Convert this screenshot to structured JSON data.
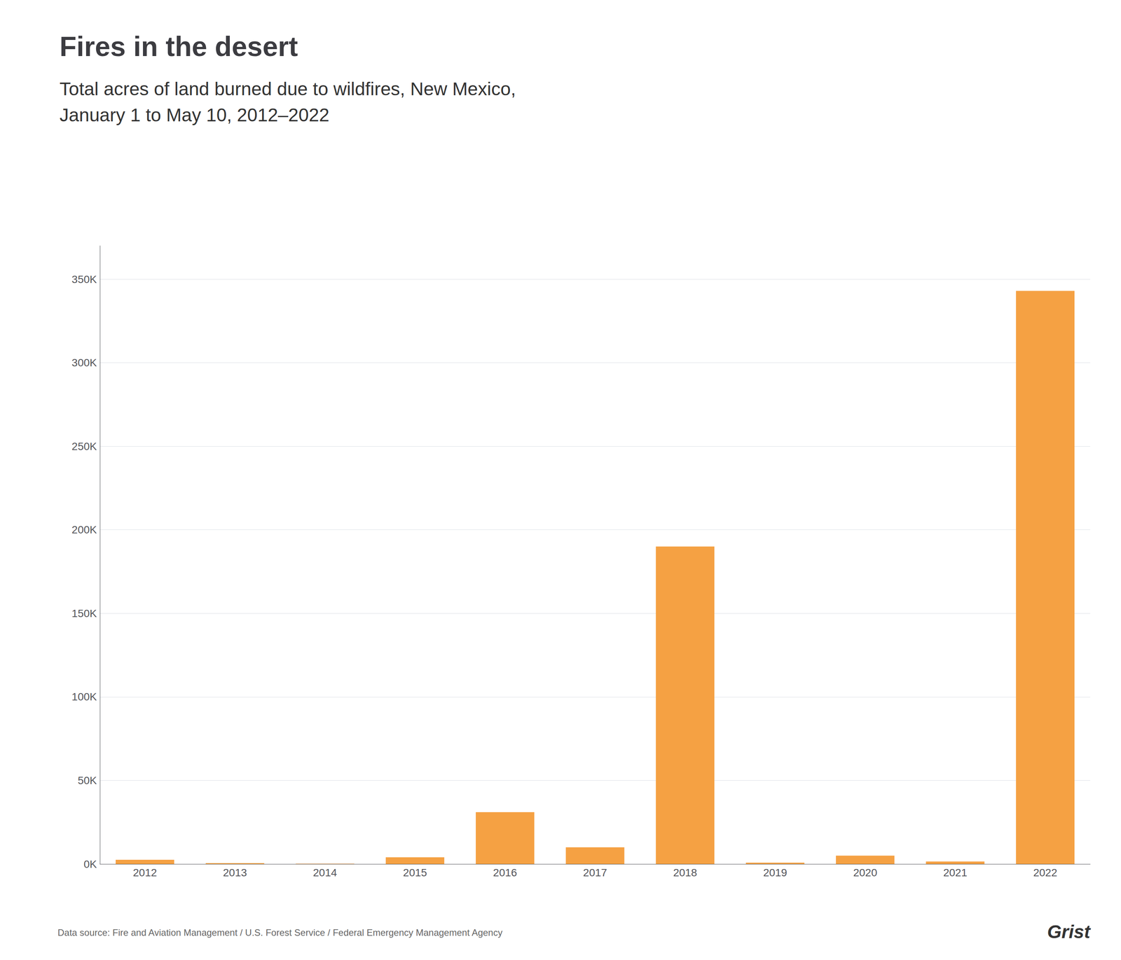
{
  "chart_data": {
    "type": "bar",
    "title": "Fires in the desert",
    "subtitle": "Total acres of land burned due to wildfires, New Mexico,\nJanuary 1 to May 10, 2012–2022",
    "annotations": [
      "Data source: Fire and Aviation Management / U.S. Forest Service / Federal Emergency Management Agency",
      "Grist"
    ],
    "categories": [
      "2012",
      "2013",
      "2014",
      "2015",
      "2016",
      "2017",
      "2018",
      "2019",
      "2020",
      "2021",
      "2022"
    ],
    "values": [
      2500,
      500,
      200,
      4000,
      31000,
      10000,
      190000,
      800,
      5000,
      1500,
      343000
    ],
    "color": "#F5A143",
    "ylim": [
      0,
      370000
    ],
    "yticks": [
      {
        "value": 0,
        "label": "0K"
      },
      {
        "value": 50000,
        "label": "50K"
      },
      {
        "value": 100000,
        "label": "100K"
      },
      {
        "value": 150000,
        "label": "150K"
      },
      {
        "value": 200000,
        "label": "200K"
      },
      {
        "value": 250000,
        "label": "250K"
      },
      {
        "value": 300000,
        "label": "300K"
      },
      {
        "value": 350000,
        "label": "350K"
      }
    ],
    "grid": true
  }
}
